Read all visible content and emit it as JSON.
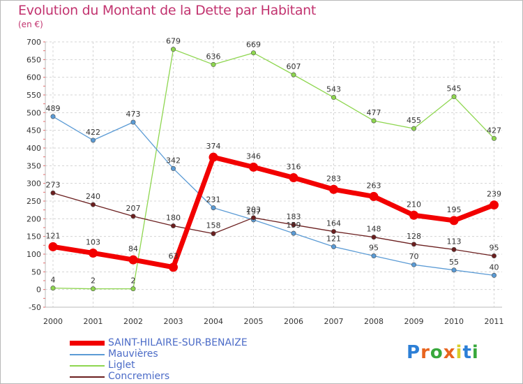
{
  "header": {
    "title": "Evolution du Montant de la Dette par Habitant",
    "subtitle": "(en €)"
  },
  "chart_data": {
    "type": "line",
    "title": "Evolution du Montant de la Dette par Habitant",
    "subtitle": "(en €)",
    "xlabel": "",
    "ylabel": "",
    "categories": [
      "2000",
      "2001",
      "2002",
      "2003",
      "2004",
      "2005",
      "2006",
      "2007",
      "2008",
      "2009",
      "2010",
      "2011"
    ],
    "ylim": [
      -50,
      700
    ],
    "yticks": [
      -50,
      0,
      50,
      100,
      150,
      200,
      250,
      300,
      350,
      400,
      450,
      500,
      550,
      600,
      650,
      700
    ],
    "grid": true,
    "legend_position": "bottom-left",
    "series": [
      {
        "name": "Liglet",
        "color": "#8ed64f",
        "values": [
          4,
          2,
          2,
          679,
          636,
          669,
          607,
          543,
          477,
          455,
          545,
          427
        ]
      },
      {
        "name": "Mauvières",
        "color": "#5b9bd5",
        "values": [
          489,
          422,
          473,
          342,
          231,
          197,
          159,
          121,
          95,
          70,
          55,
          40
        ]
      },
      {
        "name": "Concremiers",
        "color": "#6b1f1f",
        "values": [
          273,
          240,
          207,
          180,
          158,
          203,
          183,
          164,
          148,
          128,
          113,
          95
        ]
      },
      {
        "name": "SAINT-HILAIRE-SUR-BENAIZE",
        "color": "#f20000",
        "values": [
          121,
          103,
          84,
          63,
          374,
          346,
          316,
          283,
          263,
          210,
          195,
          239
        ]
      }
    ]
  },
  "legend": {
    "items": [
      {
        "label": "SAINT-HILAIRE-SUR-BENAIZE",
        "color": "#f20000"
      },
      {
        "label": "Mauvières",
        "color": "#5b9bd5"
      },
      {
        "label": "Liglet",
        "color": "#8ed64f"
      },
      {
        "label": "Concremiers",
        "color": "#6b1f1f"
      }
    ]
  },
  "logo": {
    "letters": [
      "P",
      "r",
      "o",
      "x",
      "i",
      "t",
      "i"
    ],
    "colors": [
      "#2c7fd6",
      "#e8641e",
      "#38a83c",
      "#e8641e",
      "#d8cf2a",
      "#2c7fd6",
      "#38a83c"
    ]
  }
}
